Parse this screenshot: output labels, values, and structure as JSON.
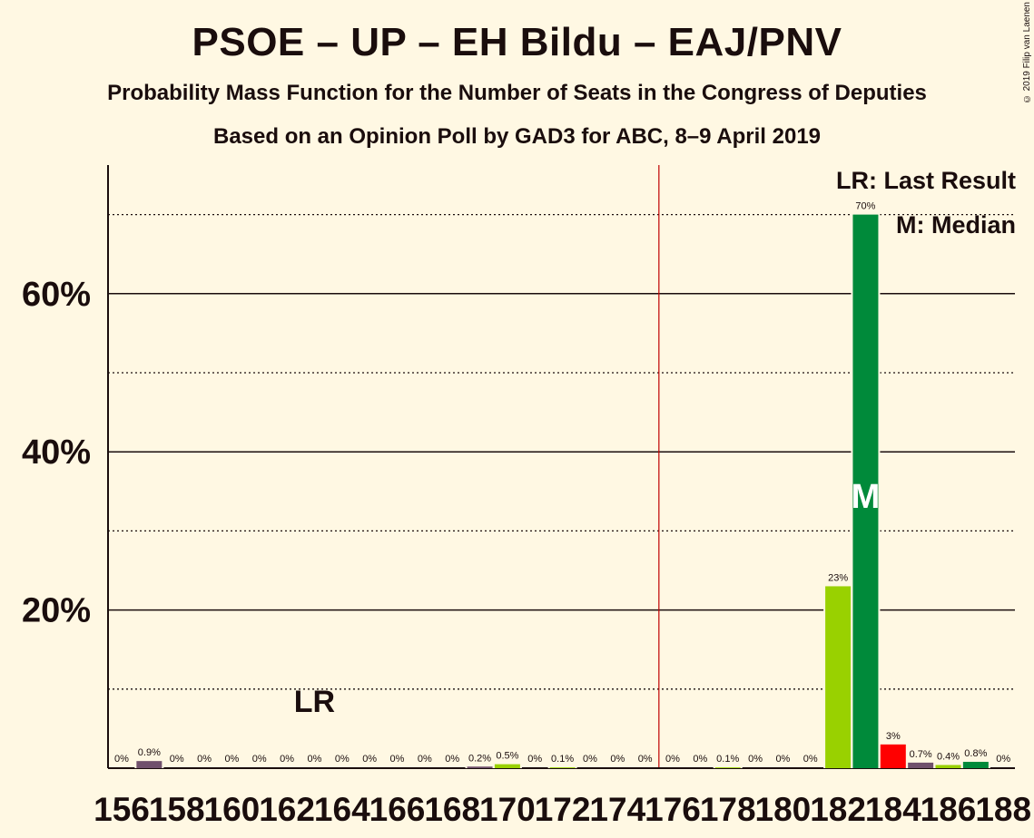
{
  "title": "PSOE – UP – EH Bildu – EAJ/PNV",
  "subtitle": "Probability Mass Function for the Number of Seats in the Congress of Deputies",
  "subtitle2": "Based on an Opinion Poll by GAD3 for ABC, 8–9 April 2019",
  "copyright": "© 2019 Filip van Laenen",
  "legend": {
    "last_result": "LR: Last Result",
    "median": "M: Median"
  },
  "markers": {
    "last_result_label": "LR",
    "last_result_seat": 163,
    "median_label": "M",
    "median_seat": 183,
    "majority_seat": 176
  },
  "colors": {
    "background": "#fff8e3",
    "psoe_up": "#008a3a",
    "light_green": "#99d100",
    "red": "#ff0000",
    "purple": "#70506c",
    "majority_line": "#c00000"
  },
  "chart_data": {
    "type": "bar",
    "title": "PSOE – UP – EH Bildu – EAJ/PNV",
    "xlabel": "",
    "ylabel": "",
    "ylim": [
      0,
      76
    ],
    "y_ticks": [
      {
        "value": 20,
        "label": "20%"
      },
      {
        "value": 40,
        "label": "40%"
      },
      {
        "value": 60,
        "label": "60%"
      }
    ],
    "dotted_gridlines": [
      10,
      30,
      50,
      70
    ],
    "x_tick_labels": [
      "156",
      "158",
      "160",
      "162",
      "164",
      "166",
      "168",
      "170",
      "172",
      "174",
      "176",
      "178",
      "180",
      "182",
      "184",
      "186",
      "188"
    ],
    "categories": [
      156,
      157,
      158,
      159,
      160,
      161,
      162,
      163,
      164,
      165,
      166,
      167,
      168,
      169,
      170,
      171,
      172,
      173,
      174,
      175,
      176,
      177,
      178,
      179,
      180,
      181,
      182,
      183,
      184,
      185,
      186,
      187,
      188
    ],
    "values": [
      0,
      0.9,
      0,
      0,
      0,
      0,
      0,
      0,
      0,
      0,
      0,
      0,
      0,
      0.2,
      0.5,
      0,
      0.1,
      0,
      0,
      0,
      0,
      0,
      0.1,
      0,
      0,
      0,
      23,
      70,
      3,
      0.7,
      0.4,
      0.8,
      0
    ],
    "labels": [
      "0%",
      "0.9%",
      "0%",
      "0%",
      "0%",
      "0%",
      "0%",
      "0%",
      "0%",
      "0%",
      "0%",
      "0%",
      "0%",
      "0.2%",
      "0.5%",
      "0%",
      "0.1%",
      "0%",
      "0%",
      "0%",
      "0%",
      "0%",
      "0.1%",
      "0%",
      "0%",
      "0%",
      "23%",
      "70%",
      "3%",
      "0.7%",
      "0.4%",
      "0.8%",
      "0%"
    ],
    "bar_colors": [
      "#70506c",
      "#70506c",
      "#70506c",
      "#70506c",
      "#70506c",
      "#70506c",
      "#70506c",
      "#70506c",
      "#70506c",
      "#70506c",
      "#70506c",
      "#70506c",
      "#70506c",
      "#70506c",
      "#99d100",
      "#99d100",
      "#99d100",
      "#99d100",
      "#99d100",
      "#99d100",
      "#99d100",
      "#99d100",
      "#99d100",
      "#99d100",
      "#99d100",
      "#99d100",
      "#99d100",
      "#008a3a",
      "#ff0000",
      "#70506c",
      "#99d100",
      "#008a3a",
      "#008a3a"
    ]
  }
}
